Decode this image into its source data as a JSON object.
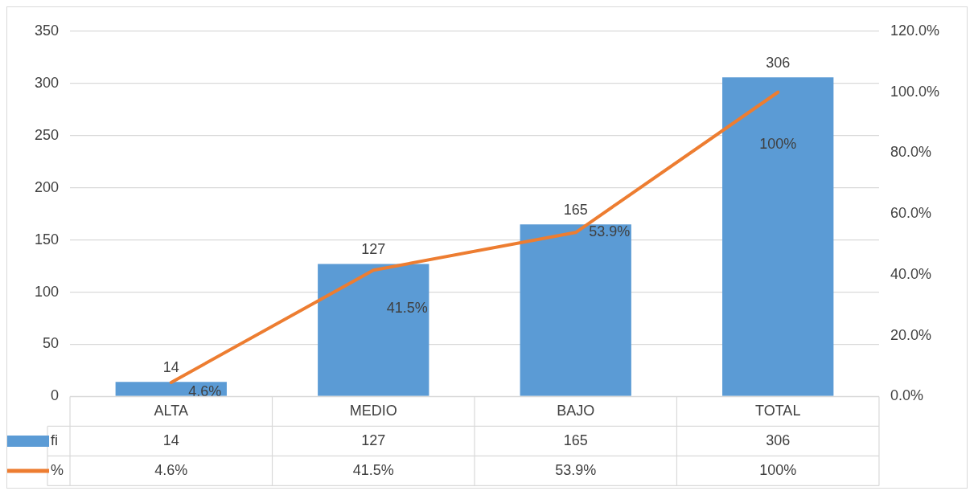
{
  "chart_data": {
    "type": "bar",
    "categories": [
      "ALTA",
      "MEDIO",
      "BAJO",
      "TOTAL"
    ],
    "series": [
      {
        "name": "fi",
        "color": "#5b9bd5",
        "values": [
          14,
          127,
          165,
          306
        ],
        "value_labels": [
          "14",
          "127",
          "165",
          "306"
        ]
      },
      {
        "name": "%",
        "type": "line",
        "axis": "y2",
        "color": "#ed7d31",
        "values": [
          4.6,
          41.5,
          53.9,
          100
        ],
        "value_labels": [
          "4.6%",
          "41.5%",
          "53.9%",
          "100%"
        ]
      }
    ],
    "ylim": [
      0,
      350
    ],
    "yticks": [
      0,
      50,
      100,
      150,
      200,
      250,
      300,
      350
    ],
    "y2lim": [
      0,
      120
    ],
    "y2ticks": [
      {
        "value": 0,
        "label": "0.0%"
      },
      {
        "value": 20,
        "label": "20.0%"
      },
      {
        "value": 40,
        "label": "40.0%"
      },
      {
        "value": 60,
        "label": "60.0%"
      },
      {
        "value": 80,
        "label": "80.0%"
      },
      {
        "value": 100,
        "label": "100.0%"
      },
      {
        "value": 120,
        "label": "120.0%"
      }
    ],
    "grid": "y",
    "legend": "bottom",
    "data_labels": true,
    "marker": "none"
  }
}
